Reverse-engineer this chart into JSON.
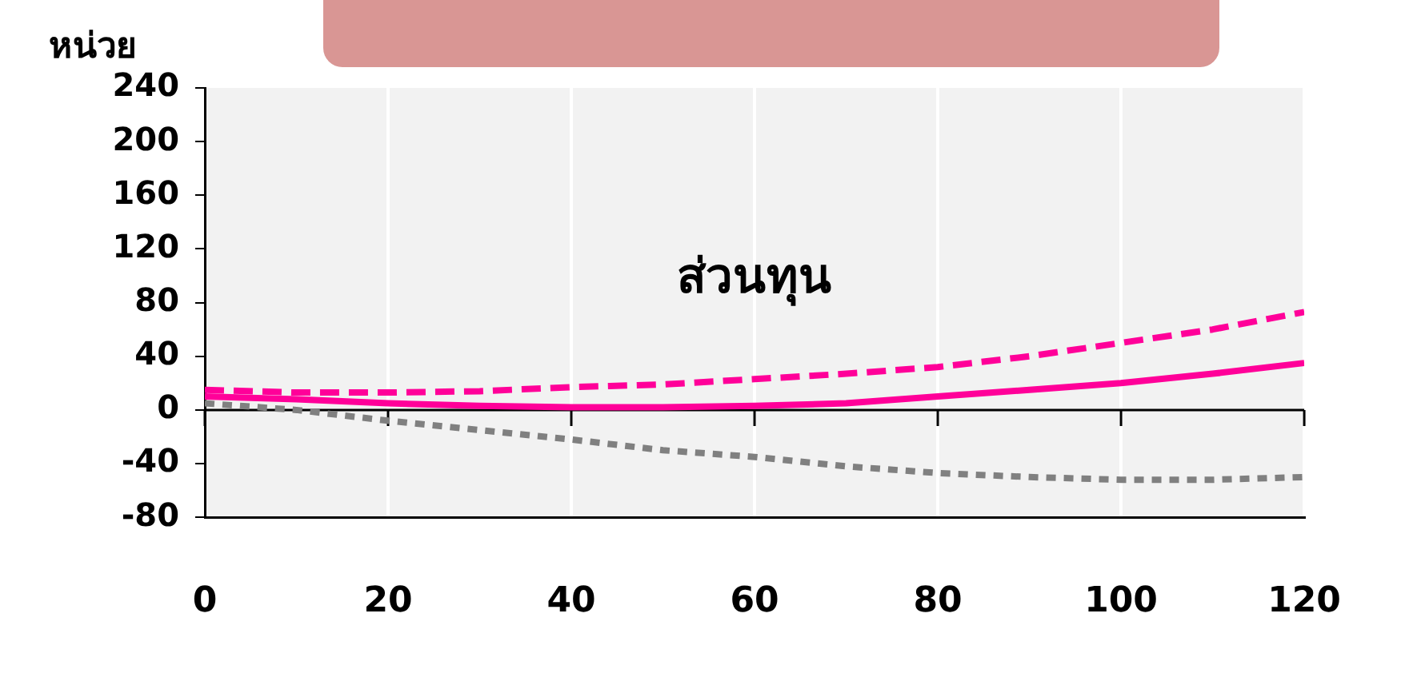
{
  "chart_data": {
    "type": "line",
    "ylabel": "หน่วย",
    "annotations": [
      "ส่วนทุน"
    ],
    "x": [
      0,
      10,
      20,
      30,
      40,
      50,
      60,
      70,
      80,
      90,
      100,
      110,
      120
    ],
    "series": [
      {
        "color": "#ff0099",
        "line_style": "dashed",
        "values": [
          15,
          13,
          13,
          14,
          17,
          19,
          23,
          27,
          32,
          40,
          50,
          60,
          73
        ]
      },
      {
        "color": "#ff0099",
        "line_style": "solid",
        "values": [
          10,
          8,
          5,
          3,
          2,
          2,
          3,
          5,
          10,
          15,
          20,
          27,
          35
        ]
      },
      {
        "color": "#808080",
        "line_style": "dotted",
        "values": [
          5,
          0,
          -8,
          -15,
          -22,
          -30,
          -35,
          -42,
          -47,
          -50,
          -52,
          -52,
          -50
        ]
      }
    ],
    "xlim": [
      0,
      120
    ],
    "xticks": [
      0,
      20,
      40,
      60,
      80,
      100,
      120
    ],
    "ylim": [
      -80,
      240
    ],
    "yticks": [
      -80,
      -40,
      0,
      40,
      80,
      120,
      160,
      200,
      240
    ],
    "grid": "x",
    "legend": false,
    "marker": "none"
  }
}
